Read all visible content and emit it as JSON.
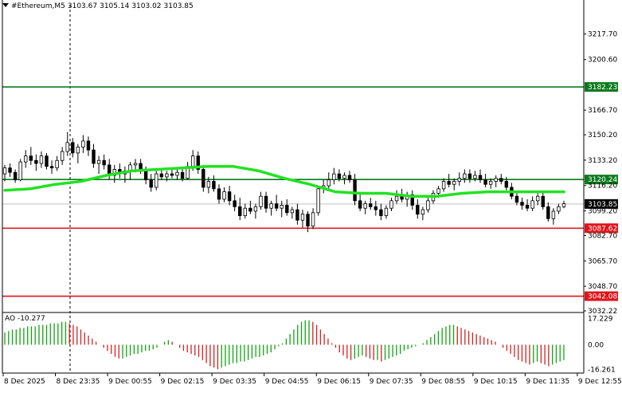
{
  "header": {
    "symbol": "#Ethereum,M5",
    "open": "3103.67",
    "high": "3105.14",
    "low": "3103.02",
    "close": "3103.85"
  },
  "colors": {
    "background": "#ffffff",
    "candle": "#000000",
    "ma": "#22e222",
    "resistance_line": "#0b7a1e",
    "support_line": "#e0141b",
    "ao_up": "#12a312",
    "ao_down": "#d42222"
  },
  "chart_data": {
    "type": "candlestick",
    "price_axis": {
      "range": [
        3032.22,
        3233.0
      ],
      "ticks": [
        "3217.70",
        "3200.60",
        "3166.70",
        "3150.20",
        "3133.20",
        "3116.20",
        "3099.20",
        "3082.70",
        "3065.70",
        "3048.70",
        "3032.22"
      ]
    },
    "time_axis": {
      "ticks": [
        "8 Dec 2025",
        "8 Dec 23:35",
        "9 Dec 00:55",
        "9 Dec 02:15",
        "9 Dec 03:35",
        "9 Dec 04:55",
        "9 Dec 06:15",
        "9 Dec 07:35",
        "9 Dec 08:55",
        "9 Dec 10:15",
        "9 Dec 11:35",
        "9 Dec 12:55"
      ]
    },
    "levels": [
      {
        "value": 3182.23,
        "label": "3182.23",
        "color": "#0b7a1e"
      },
      {
        "value": 3120.24,
        "label": "3120.24",
        "color": "#0b7a1e"
      },
      {
        "value": 3087.62,
        "label": "3087.62",
        "color": "#e0141b"
      },
      {
        "value": 3042.08,
        "label": "3042.08",
        "color": "#e0141b"
      }
    ],
    "current_price": {
      "value": 3103.85,
      "label": "3103.85"
    },
    "moving_average": [
      [
        0,
        3113
      ],
      [
        10,
        3114
      ],
      [
        20,
        3117
      ],
      [
        30,
        3119
      ],
      [
        40,
        3123
      ],
      [
        50,
        3126
      ],
      [
        60,
        3127
      ],
      [
        70,
        3128
      ],
      [
        80,
        3129
      ],
      [
        90,
        3129
      ],
      [
        100,
        3126
      ],
      [
        110,
        3121
      ],
      [
        120,
        3117
      ],
      [
        130,
        3112
      ],
      [
        140,
        3111
      ],
      [
        150,
        3111
      ],
      [
        160,
        3109
      ],
      [
        170,
        3109
      ],
      [
        180,
        3111
      ],
      [
        190,
        3112
      ],
      [
        200,
        3112
      ],
      [
        210,
        3112
      ],
      [
        220,
        3112
      ]
    ],
    "candles": [
      [
        3124,
        3130,
        3119,
        3128
      ],
      [
        3128,
        3131,
        3122,
        3125
      ],
      [
        3125,
        3127,
        3118,
        3120
      ],
      [
        3120,
        3134,
        3119,
        3132
      ],
      [
        3132,
        3140,
        3128,
        3136
      ],
      [
        3136,
        3142,
        3130,
        3133
      ],
      [
        3133,
        3137,
        3126,
        3131
      ],
      [
        3131,
        3139,
        3128,
        3136
      ],
      [
        3136,
        3138,
        3127,
        3129
      ],
      [
        3129,
        3133,
        3124,
        3128
      ],
      [
        3128,
        3136,
        3126,
        3133
      ],
      [
        3133,
        3142,
        3130,
        3139
      ],
      [
        3139,
        3152,
        3136,
        3145
      ],
      [
        3145,
        3148,
        3135,
        3138
      ],
      [
        3138,
        3144,
        3131,
        3142
      ],
      [
        3142,
        3150,
        3138,
        3146
      ],
      [
        3146,
        3149,
        3136,
        3140
      ],
      [
        3140,
        3144,
        3128,
        3131
      ],
      [
        3131,
        3136,
        3124,
        3133
      ],
      [
        3133,
        3137,
        3127,
        3130
      ],
      [
        3130,
        3134,
        3120,
        3123
      ],
      [
        3123,
        3130,
        3118,
        3127
      ],
      [
        3127,
        3131,
        3121,
        3124
      ],
      [
        3124,
        3129,
        3118,
        3126
      ],
      [
        3126,
        3132,
        3120,
        3130
      ],
      [
        3130,
        3134,
        3125,
        3131
      ],
      [
        3131,
        3134,
        3124,
        3126
      ],
      [
        3126,
        3129,
        3117,
        3120
      ],
      [
        3120,
        3124,
        3112,
        3115
      ],
      [
        3115,
        3126,
        3113,
        3124
      ],
      [
        3124,
        3127,
        3120,
        3122
      ],
      [
        3122,
        3126,
        3119,
        3124
      ],
      [
        3124,
        3128,
        3121,
        3123
      ],
      [
        3123,
        3127,
        3120,
        3125
      ],
      [
        3125,
        3128,
        3119,
        3121
      ],
      [
        3121,
        3132,
        3120,
        3129
      ],
      [
        3129,
        3140,
        3126,
        3136
      ],
      [
        3136,
        3139,
        3124,
        3127
      ],
      [
        3127,
        3130,
        3112,
        3115
      ],
      [
        3115,
        3122,
        3111,
        3119
      ],
      [
        3119,
        3123,
        3112,
        3114
      ],
      [
        3114,
        3117,
        3104,
        3107
      ],
      [
        3107,
        3115,
        3105,
        3112
      ],
      [
        3112,
        3116,
        3103,
        3106
      ],
      [
        3106,
        3110,
        3099,
        3102
      ],
      [
        3102,
        3108,
        3093,
        3096
      ],
      [
        3096,
        3104,
        3094,
        3101
      ],
      [
        3101,
        3106,
        3097,
        3099
      ],
      [
        3099,
        3104,
        3094,
        3102
      ],
      [
        3102,
        3112,
        3100,
        3109
      ],
      [
        3109,
        3112,
        3098,
        3101
      ],
      [
        3101,
        3106,
        3096,
        3104
      ],
      [
        3104,
        3110,
        3099,
        3101
      ],
      [
        3101,
        3106,
        3095,
        3103
      ],
      [
        3103,
        3107,
        3096,
        3098
      ],
      [
        3098,
        3102,
        3094,
        3100
      ],
      [
        3100,
        3104,
        3090,
        3093
      ],
      [
        3093,
        3100,
        3088,
        3097
      ],
      [
        3097,
        3099,
        3085,
        3089
      ],
      [
        3089,
        3101,
        3087,
        3098
      ],
      [
        3098,
        3116,
        3096,
        3114
      ],
      [
        3114,
        3120,
        3111,
        3116
      ],
      [
        3116,
        3125,
        3113,
        3120
      ],
      [
        3120,
        3128,
        3117,
        3124
      ],
      [
        3124,
        3127,
        3119,
        3121
      ],
      [
        3121,
        3125,
        3117,
        3123
      ],
      [
        3123,
        3126,
        3118,
        3120
      ],
      [
        3120,
        3124,
        3103,
        3106
      ],
      [
        3106,
        3111,
        3099,
        3101
      ],
      [
        3101,
        3106,
        3097,
        3104
      ],
      [
        3104,
        3108,
        3100,
        3102
      ],
      [
        3102,
        3106,
        3096,
        3100
      ],
      [
        3100,
        3104,
        3093,
        3096
      ],
      [
        3096,
        3103,
        3094,
        3101
      ],
      [
        3101,
        3108,
        3099,
        3106
      ],
      [
        3106,
        3113,
        3104,
        3109
      ],
      [
        3109,
        3114,
        3105,
        3107
      ],
      [
        3107,
        3112,
        3102,
        3110
      ],
      [
        3110,
        3113,
        3100,
        3103
      ],
      [
        3103,
        3107,
        3094,
        3097
      ],
      [
        3097,
        3102,
        3093,
        3100
      ],
      [
        3100,
        3108,
        3098,
        3106
      ],
      [
        3106,
        3113,
        3104,
        3111
      ],
      [
        3111,
        3116,
        3108,
        3114
      ],
      [
        3114,
        3121,
        3112,
        3119
      ],
      [
        3119,
        3124,
        3115,
        3117
      ],
      [
        3117,
        3121,
        3113,
        3119
      ],
      [
        3119,
        3125,
        3116,
        3121
      ],
      [
        3121,
        3127,
        3118,
        3124
      ],
      [
        3124,
        3127,
        3118,
        3121
      ],
      [
        3121,
        3126,
        3119,
        3123
      ],
      [
        3123,
        3127,
        3118,
        3120
      ],
      [
        3120,
        3124,
        3115,
        3117
      ],
      [
        3117,
        3121,
        3114,
        3119
      ],
      [
        3119,
        3123,
        3115,
        3121
      ],
      [
        3121,
        3124,
        3117,
        3119
      ],
      [
        3119,
        3122,
        3113,
        3115
      ],
      [
        3115,
        3118,
        3107,
        3109
      ],
      [
        3109,
        3112,
        3103,
        3105
      ],
      [
        3105,
        3108,
        3100,
        3103
      ],
      [
        3103,
        3107,
        3099,
        3101
      ],
      [
        3101,
        3109,
        3099,
        3106
      ],
      [
        3106,
        3111,
        3103,
        3109
      ],
      [
        3109,
        3112,
        3100,
        3102
      ],
      [
        3102,
        3105,
        3092,
        3094
      ],
      [
        3094,
        3101,
        3090,
        3099
      ],
      [
        3099,
        3104,
        3097,
        3102
      ],
      [
        3102,
        3106,
        3101,
        3104
      ]
    ],
    "ao": {
      "label": "AO -10.277",
      "axis_ticks": [
        "17.229",
        "0.00",
        "-16.261"
      ],
      "range": [
        -17.5,
        18.5
      ],
      "values": [
        8,
        9,
        10,
        10,
        11,
        11,
        12,
        12,
        12,
        13,
        13,
        13,
        14,
        14,
        14,
        15,
        15,
        14,
        13,
        12,
        10,
        8,
        6,
        4,
        2,
        0,
        -2,
        -4,
        -6,
        -8,
        -9,
        -9,
        -8,
        -7,
        -6,
        -6,
        -5,
        -4,
        -4,
        -3,
        -2,
        0,
        2,
        3,
        2,
        0,
        -2,
        -4,
        -5,
        -6,
        -7,
        -8,
        -10,
        -12,
        -14,
        -15,
        -16,
        -15,
        -14,
        -13,
        -12,
        -12,
        -11,
        -11,
        -10,
        -9,
        -8,
        -8,
        -7,
        -6,
        -5,
        -3,
        -1,
        1,
        4,
        7,
        10,
        13,
        15,
        16,
        16,
        15,
        13,
        10,
        7,
        4,
        1,
        -2,
        -5,
        -7,
        -9,
        -10,
        -9,
        -8,
        -7,
        -8,
        -9,
        -10,
        -10,
        -11,
        -10,
        -9,
        -8,
        -7,
        -6,
        -4,
        -3,
        -2,
        -1,
        0,
        1,
        3,
        5,
        7,
        9,
        11,
        12,
        13,
        13,
        12,
        11,
        10,
        9,
        8,
        7,
        6,
        5,
        4,
        3,
        2,
        0,
        -2,
        -4,
        -6,
        -8,
        -10,
        -11,
        -12,
        -13,
        -12,
        -11,
        -12,
        -13,
        -14,
        -13,
        -12,
        -11,
        -10
      ]
    }
  }
}
